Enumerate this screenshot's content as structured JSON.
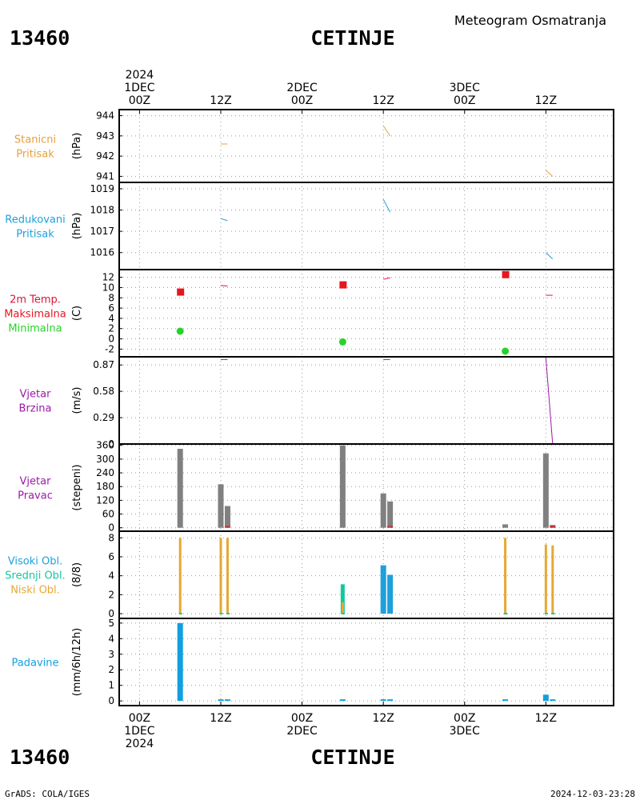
{
  "header": {
    "station_id": "13460",
    "station_name": "CETINJE",
    "product_title": "Meteogram Osmatranja"
  },
  "footer": {
    "station_id": "13460",
    "station_name": "CETINJE",
    "software": "GrADS: COLA/IGES",
    "timestamp": "2024-12-03-23:28"
  },
  "time_axis": {
    "top_labels": [
      {
        "hour": 0,
        "lines": [
          "2024",
          "1DEC",
          "00Z"
        ]
      },
      {
        "hour": 12,
        "lines": [
          "12Z"
        ]
      },
      {
        "hour": 24,
        "lines": [
          "2DEC",
          "00Z"
        ]
      },
      {
        "hour": 36,
        "lines": [
          "12Z"
        ]
      },
      {
        "hour": 48,
        "lines": [
          "3DEC",
          "00Z"
        ]
      },
      {
        "hour": 60,
        "lines": [
          "12Z"
        ]
      }
    ],
    "bottom_labels": [
      {
        "hour": 0,
        "lines": [
          "00Z",
          "1DEC",
          "2024"
        ]
      },
      {
        "hour": 12,
        "lines": [
          "12Z"
        ]
      },
      {
        "hour": 24,
        "lines": [
          "00Z",
          "2DEC"
        ]
      },
      {
        "hour": 36,
        "lines": [
          "12Z"
        ]
      },
      {
        "hour": 48,
        "lines": [
          "00Z",
          "3DEC"
        ]
      },
      {
        "hour": 60,
        "lines": [
          "12Z"
        ]
      }
    ]
  },
  "colors": {
    "stanicni": "#e6a03c",
    "redukovani": "#1ea0dc",
    "temp_label": "#dc143c",
    "maks": "#e6161e",
    "min": "#28d228",
    "wind": "#9a1aa8",
    "grey_bar": "#808080",
    "visoki": "#1ea0dc",
    "srednji": "#10c8a0",
    "niski": "#e6a832",
    "padavine": "#10a0e0",
    "red_bar": "#e6161e"
  },
  "chart_data": [
    {
      "type": "line",
      "panel": "stanicni",
      "labels": [
        "Stanicni",
        "Pritisak"
      ],
      "ylabel": "(hPa)",
      "ylim": [
        940.7,
        944.3
      ],
      "yticks": [
        941,
        942,
        943,
        944
      ],
      "x_range_hours": [
        -3,
        70
      ],
      "series": [
        {
          "x": [
            12,
            13
          ],
          "y": [
            942.6,
            942.6
          ]
        },
        {
          "x": [
            36,
            37
          ],
          "y": [
            943.5,
            943.0
          ]
        },
        {
          "x": [
            60,
            61
          ],
          "y": [
            941.3,
            941.0
          ]
        }
      ]
    },
    {
      "type": "line",
      "panel": "redukovani",
      "labels": [
        "Redukovani",
        "Pritisak"
      ],
      "ylabel": "(hPa)",
      "ylim": [
        1015.2,
        1019.3
      ],
      "yticks": [
        1016,
        1017,
        1018,
        1019
      ],
      "x_range_hours": [
        -3,
        70
      ],
      "series": [
        {
          "x": [
            12,
            13
          ],
          "y": [
            1017.6,
            1017.5
          ]
        },
        {
          "x": [
            36,
            37
          ],
          "y": [
            1018.5,
            1017.9
          ]
        },
        {
          "x": [
            60,
            61
          ],
          "y": [
            1016.0,
            1015.7
          ]
        }
      ]
    },
    {
      "type": "scatter",
      "panel": "temp",
      "labels": [
        "2m Temp.",
        "Maksimalna",
        "Minimalna"
      ],
      "ylabel": "(C)",
      "ylim": [
        -3.5,
        13.5
      ],
      "yticks": [
        -2,
        0,
        2,
        4,
        6,
        8,
        10,
        12
      ],
      "x_range_hours": [
        -3,
        70
      ],
      "temp_lines": [
        {
          "x": [
            12,
            13
          ],
          "y": [
            10.4,
            10.3
          ]
        },
        {
          "x": [
            36,
            37
          ],
          "y": [
            11.6,
            11.9
          ]
        },
        {
          "x": [
            60,
            61
          ],
          "y": [
            8.5,
            8.5
          ]
        }
      ],
      "maksimalna": [
        {
          "x": 6,
          "y": 9.2
        },
        {
          "x": 30,
          "y": 10.6
        },
        {
          "x": 54,
          "y": 12.6
        }
      ],
      "minimalna": [
        {
          "x": 6,
          "y": 1.5
        },
        {
          "x": 30,
          "y": -0.6
        },
        {
          "x": 54,
          "y": -2.4
        }
      ]
    },
    {
      "type": "line",
      "panel": "vjetar_brzina",
      "labels": [
        "Vjetar",
        "Brzina"
      ],
      "ylabel": "(m/s)",
      "ylim": [
        0,
        0.96
      ],
      "yticks": [
        0,
        0.29,
        0.58,
        0.87
      ],
      "x_range_hours": [
        -3,
        70
      ],
      "series": [
        {
          "x": [
            12,
            13
          ],
          "y": [
            0.93,
            0.93
          ]
        },
        {
          "x": [
            36,
            37
          ],
          "y": [
            0.93,
            0.93
          ]
        },
        {
          "x": [
            60,
            61
          ],
          "y": [
            0.95,
            0.0
          ]
        }
      ]
    },
    {
      "type": "bar",
      "panel": "vjetar_pravac",
      "labels": [
        "Vjetar",
        "Pravac"
      ],
      "ylabel": "(stepeni)",
      "ylim": [
        -15,
        366
      ],
      "yticks": [
        0,
        60,
        120,
        180,
        240,
        300,
        360
      ],
      "x_range_hours": [
        -3,
        70
      ],
      "bars": [
        {
          "x": 6,
          "y": 345
        },
        {
          "x": 12,
          "y": 190
        },
        {
          "x": 13,
          "y": 95
        },
        {
          "x": 30,
          "y": 360
        },
        {
          "x": 36,
          "y": 150
        },
        {
          "x": 37,
          "y": 115
        },
        {
          "x": 54,
          "y": 15
        },
        {
          "x": 60,
          "y": 325
        },
        {
          "x": 61,
          "y": 12
        }
      ],
      "red_bars": [
        {
          "x": 13,
          "y": 8
        },
        {
          "x": 37,
          "y": 8
        },
        {
          "x": 61,
          "y": 10
        }
      ]
    },
    {
      "type": "bar",
      "panel": "oblacnost",
      "labels": [
        "Visoki Obl.",
        "Srednji Obl.",
        "Niski Obl."
      ],
      "ylabel": "(8/8)",
      "ylim": [
        -0.5,
        8.7
      ],
      "yticks": [
        0,
        2,
        4,
        6,
        8
      ],
      "x_range_hours": [
        -3,
        70
      ],
      "niski": [
        {
          "x": 6,
          "y": 8
        },
        {
          "x": 12,
          "y": 8
        },
        {
          "x": 13,
          "y": 8
        },
        {
          "x": 30,
          "y": 1.2
        },
        {
          "x": 54,
          "y": 8
        },
        {
          "x": 60,
          "y": 7.3
        },
        {
          "x": 61,
          "y": 7.2
        }
      ],
      "srednji": [
        {
          "x": 30,
          "y": 3.1
        }
      ],
      "visoki": [
        {
          "x": 36,
          "y": 5.1
        },
        {
          "x": 37,
          "y": 4.1
        }
      ]
    },
    {
      "type": "bar",
      "panel": "padavine",
      "labels": [
        "Padavine"
      ],
      "ylabel": "(mm/6h/12h)",
      "ylim": [
        -0.3,
        5.3
      ],
      "yticks": [
        0,
        1,
        2,
        3,
        4,
        5
      ],
      "x_range_hours": [
        -3,
        70
      ],
      "bars": [
        {
          "x": 6,
          "y": 5.0
        },
        {
          "x": 12,
          "y": 0.05
        },
        {
          "x": 13,
          "y": 0.05
        },
        {
          "x": 30,
          "y": 0.05
        },
        {
          "x": 36,
          "y": 0.05
        },
        {
          "x": 37,
          "y": 0.05
        },
        {
          "x": 54,
          "y": 0.05
        },
        {
          "x": 60,
          "y": 0.4
        },
        {
          "x": 61,
          "y": 0.05
        }
      ]
    }
  ]
}
